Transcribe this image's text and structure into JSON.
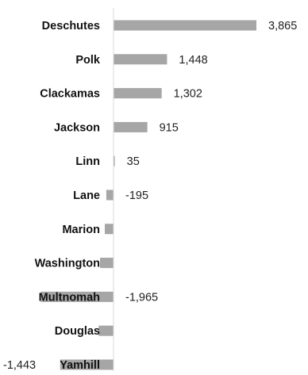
{
  "chart_data": {
    "type": "bar",
    "orientation": "horizontal",
    "title": "",
    "xlabel": "",
    "ylabel": "",
    "categories": [
      "Deschutes",
      "Polk",
      "Clackamas",
      "Jackson",
      "Linn",
      "Lane",
      "Marion",
      "Washington",
      "Multnomah",
      "Douglas",
      "Yamhill"
    ],
    "values": [
      3865,
      1448,
      1302,
      915,
      35,
      -195,
      -236,
      -365,
      -1965,
      -402,
      -1443
    ],
    "data_labels": [
      "3,865",
      "1,448",
      "1,302",
      "915",
      "35",
      "-195",
      "",
      "",
      "-1,965",
      "",
      "-1,443"
    ],
    "bar_color": "#a6a6a6",
    "axis_color": "#d9d9d9",
    "grid": false,
    "legend": "none"
  }
}
